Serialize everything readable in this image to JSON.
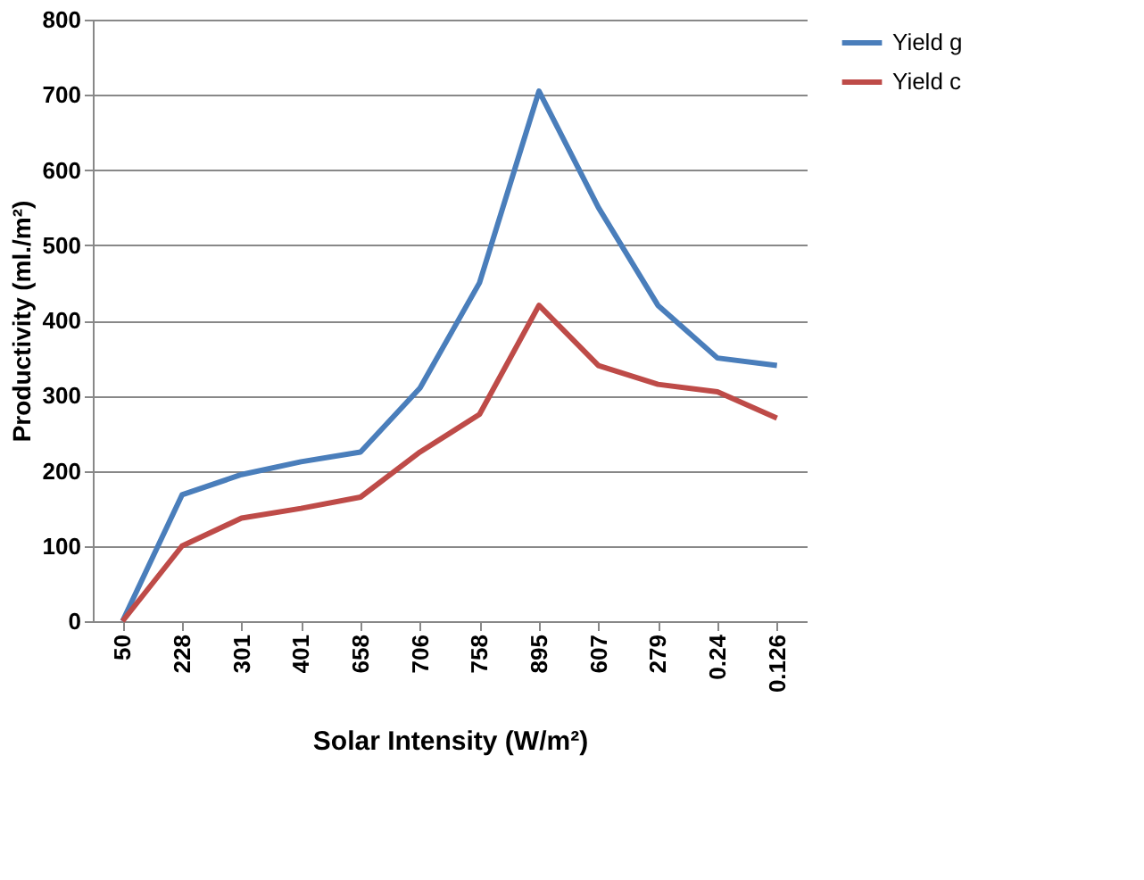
{
  "chart_data": {
    "type": "line",
    "xlabel": "Solar Intensity (W/m²)",
    "ylabel": "Productivity (ml./m²)",
    "categories": [
      "50",
      "228",
      "301",
      "401",
      "658",
      "706",
      "758",
      "895",
      "607",
      "279",
      "0.24",
      "0.126"
    ],
    "series": [
      {
        "name": "Yield g",
        "color": "#4a7ebb",
        "values": [
          0,
          168,
          195,
          212,
          225,
          310,
          450,
          705,
          550,
          420,
          350,
          340
        ]
      },
      {
        "name": "Yield c",
        "color": "#be4b48",
        "values": [
          0,
          100,
          137,
          150,
          165,
          225,
          275,
          420,
          340,
          315,
          305,
          270
        ]
      }
    ],
    "ylim": [
      0,
      800
    ],
    "yticks": [
      0,
      100,
      200,
      300,
      400,
      500,
      600,
      700,
      800
    ],
    "grid": "y",
    "legend": "right",
    "marker": "none",
    "line_style": "solid"
  }
}
